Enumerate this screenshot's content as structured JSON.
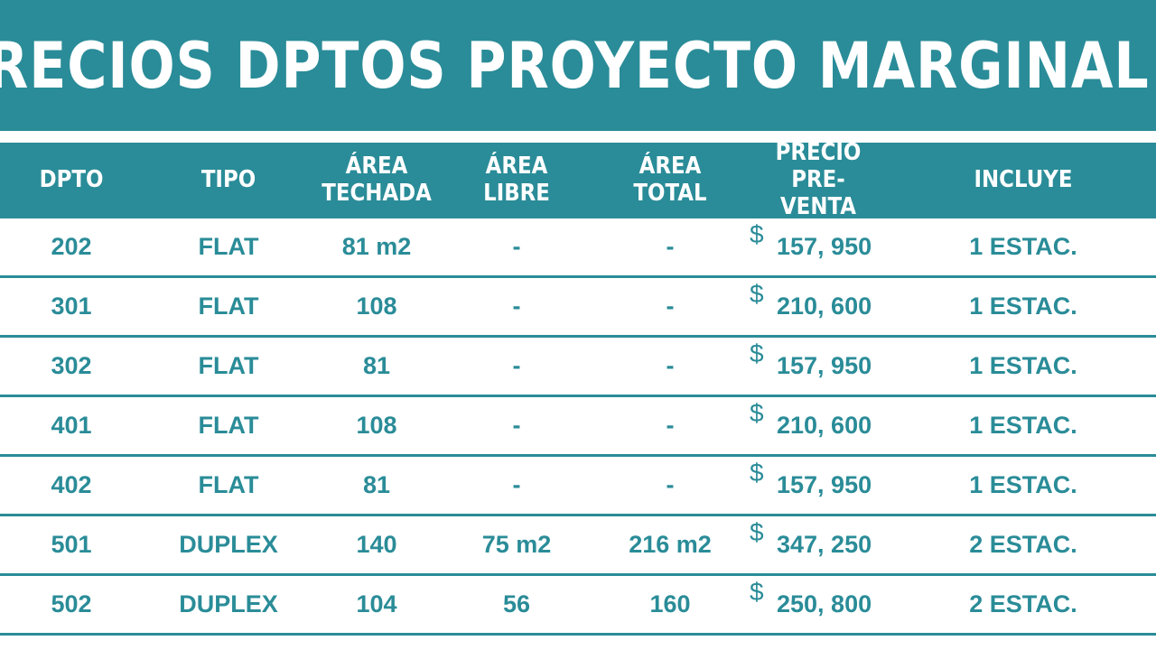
{
  "title": "PRECIOS DPTOS PROYECTO MARGINAL II",
  "headers": {
    "dpto": "DPTO",
    "tipo": "TIPO",
    "area_techada": "ÁREA\nTECHADA",
    "area_libre": "ÁREA\nLIBRE",
    "area_total": "ÁREA\nTOTAL",
    "precio": "PRECIO\nPRE-VENTA",
    "incluye": "INCLUYE"
  },
  "currency_symbol": "$",
  "rows": [
    {
      "dpto": "202",
      "tipo": "FLAT",
      "area_techada": "81 m2",
      "area_libre": "-",
      "area_total": "-",
      "precio": "157, 950",
      "incluye": "1 ESTAC."
    },
    {
      "dpto": "301",
      "tipo": "FLAT",
      "area_techada": "108",
      "area_libre": "-",
      "area_total": "-",
      "precio": "210, 600",
      "incluye": "1 ESTAC."
    },
    {
      "dpto": "302",
      "tipo": "FLAT",
      "area_techada": "81",
      "area_libre": "-",
      "area_total": "-",
      "precio": "157, 950",
      "incluye": "1 ESTAC."
    },
    {
      "dpto": "401",
      "tipo": "FLAT",
      "area_techada": "108",
      "area_libre": "-",
      "area_total": "-",
      "precio": "210, 600",
      "incluye": "1 ESTAC."
    },
    {
      "dpto": "402",
      "tipo": "FLAT",
      "area_techada": "81",
      "area_libre": "-",
      "area_total": "-",
      "precio": "157, 950",
      "incluye": "1 ESTAC."
    },
    {
      "dpto": "501",
      "tipo": "DUPLEX",
      "area_techada": "140",
      "area_libre": "75 m2",
      "area_total": "216 m2",
      "precio": "347, 250",
      "incluye": "2 ESTAC."
    },
    {
      "dpto": "502",
      "tipo": "DUPLEX",
      "area_techada": "104",
      "area_libre": "56",
      "area_total": "160",
      "precio": "250, 800",
      "incluye": "2 ESTAC."
    }
  ],
  "colors": {
    "accent": "#2a8c98",
    "background": "#ffffff"
  }
}
